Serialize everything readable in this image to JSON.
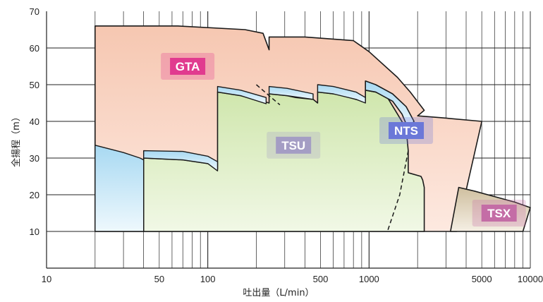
{
  "chart_data": {
    "type": "area",
    "xlabel": "吐出量（L/min）",
    "ylabel": "全揚程（m）",
    "x_scale": "log",
    "xlim": [
      10,
      10000
    ],
    "ylim": [
      0,
      70
    ],
    "grid": true,
    "x_ticks": [
      "10",
      "50",
      "100",
      "500",
      "1000",
      "5000",
      "10000"
    ],
    "y_ticks": [
      "10",
      "20",
      "30",
      "40",
      "50",
      "60",
      "70"
    ],
    "series": [
      {
        "name": "GTA",
        "color": "#f6c9b4",
        "points": [
          [
            20,
            10
          ],
          [
            20,
            66
          ],
          [
            65,
            66
          ],
          [
            170,
            65
          ],
          [
            220,
            64
          ],
          [
            240,
            59.5
          ],
          [
            240,
            63
          ],
          [
            400,
            63
          ],
          [
            800,
            62
          ],
          [
            1000,
            59
          ],
          [
            1500,
            52
          ],
          [
            1800,
            48
          ],
          [
            2200,
            43
          ],
          [
            2000,
            41.5
          ],
          [
            2800,
            41
          ],
          [
            5000,
            40
          ],
          [
            3500,
            10
          ],
          [
            20,
            10
          ]
        ]
      },
      {
        "name": "TSU",
        "color": "#d7eab8",
        "points": [
          [
            40,
            10
          ],
          [
            40,
            30
          ],
          [
            70,
            29.5
          ],
          [
            100,
            28.5
          ],
          [
            115,
            27
          ],
          [
            115,
            48
          ],
          [
            160,
            47
          ],
          [
            220,
            45.5
          ],
          [
            240,
            45
          ],
          [
            240,
            47.5
          ],
          [
            310,
            47
          ],
          [
            350,
            46.5
          ],
          [
            450,
            46
          ],
          [
            480,
            45
          ],
          [
            480,
            48
          ],
          [
            600,
            47.5
          ],
          [
            700,
            47
          ],
          [
            830,
            46
          ],
          [
            950,
            45.5
          ],
          [
            950,
            48.5
          ],
          [
            1100,
            48
          ],
          [
            1300,
            46.5
          ],
          [
            1500,
            42
          ],
          [
            1700,
            38
          ],
          [
            1750,
            32
          ],
          [
            1750,
            26
          ],
          [
            2100,
            25
          ],
          [
            2150,
            24
          ],
          [
            2200,
            22
          ],
          [
            2200,
            10
          ],
          [
            40,
            10
          ]
        ]
      },
      {
        "name": "NTS",
        "color": "#bfe3f5",
        "points": [
          [
            950,
            51
          ],
          [
            1100,
            50
          ],
          [
            1400,
            47.5
          ],
          [
            1700,
            44
          ],
          [
            1900,
            40
          ],
          [
            1750,
            38
          ],
          [
            1600,
            42
          ],
          [
            1400,
            45.5
          ],
          [
            1100,
            48
          ],
          [
            950,
            48.5
          ]
        ]
      },
      {
        "name": "TSX",
        "color": "#d9ccb4",
        "points": [
          [
            3600,
            22
          ],
          [
            4500,
            21
          ],
          [
            6000,
            19.5
          ],
          [
            8000,
            18
          ],
          [
            10000,
            16.5
          ],
          [
            9000,
            10
          ],
          [
            3200,
            10
          ]
        ]
      }
    ],
    "annotations": [
      {
        "text": "GTA",
        "x": 75,
        "y": 55,
        "color": "#e13a8f",
        "text_color": "#ffffff"
      },
      {
        "text": "TSU",
        "x": 340,
        "y": 33.5,
        "color": "#a49dc4",
        "text_color": "#ffffff"
      },
      {
        "text": "NTS",
        "x": 1700,
        "y": 37.5,
        "color": "#6b78d8",
        "text_color": "#ffffff"
      },
      {
        "text": "TSX",
        "x": 6400,
        "y": 15,
        "color": "#c46da6",
        "text_color": "#ffffff"
      }
    ]
  }
}
